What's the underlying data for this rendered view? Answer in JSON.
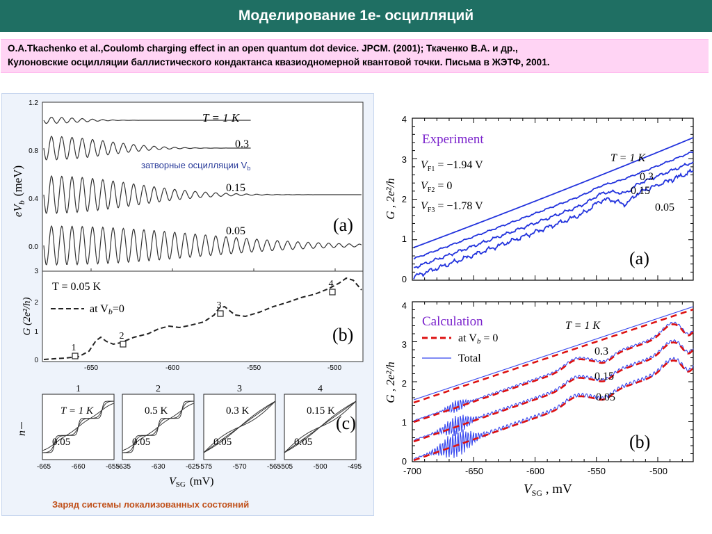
{
  "header": {
    "title": "Моделирование 1е- осцилляций"
  },
  "reference": {
    "line1": "O.A.Tkachenko et al.,Coulomb charging effect in an open quantum dot device. JPCM. (2001); Ткаченко В.А. и др.,",
    "line2": "Кулоновские осцилляции баллистического кондактанса  квазиодномерной квантовой точки. Письма в ЖЭТФ, 2001."
  },
  "left_figure": {
    "annotation_gate": "затворные осцилляции V",
    "annotation_gate_sub": "b",
    "caption": "Заряд системы локализованных состояний",
    "panel_a": {
      "label": "(a)",
      "ylabel": "eV",
      "ylabel_sub": "b",
      "ylabel_unit": "(meV)",
      "yticks": [
        "1.2",
        "0.8",
        "0.4",
        "0.0"
      ],
      "curve_labels": [
        "T = 1 K",
        "0.3",
        "0.15",
        "0.05"
      ]
    },
    "panel_b": {
      "label": "(b)",
      "ylabel": "G  (2e²/h)",
      "yticks": [
        "3",
        "2",
        "1",
        "0"
      ],
      "xticks": [
        "-650",
        "-600",
        "-550",
        "-500"
      ],
      "legend_T": "T = 0.05 K",
      "legend_line": "at V",
      "legend_line_sub": "b",
      "legend_line_tail": "=0",
      "markers": [
        "1",
        "2",
        "3",
        "4"
      ]
    },
    "panel_c": {
      "label": "(c)",
      "ylabel": "n",
      "xlabel": "V",
      "xlabel_sub": "SG",
      "xlabel_unit": "(mV)",
      "subplots": [
        {
          "num": "1",
          "top": "T = 1 K",
          "bottom": "0.05",
          "xticks": [
            "-665",
            "-660",
            "-655"
          ]
        },
        {
          "num": "2",
          "top": "0.5 K",
          "bottom": "0.05",
          "xticks": [
            "-635",
            "-630",
            "-625"
          ]
        },
        {
          "num": "3",
          "top": "0.3 K",
          "bottom": "0.05",
          "xticks": [
            "-575",
            "-570",
            "-565"
          ]
        },
        {
          "num": "4",
          "top": "0.15 K",
          "bottom": "0.05",
          "xticks": [
            "-505",
            "-500",
            "-495"
          ]
        }
      ]
    }
  },
  "right_figure": {
    "ylabel": "G ,  2e²/h",
    "xlabel": "V",
    "xlabel_sub": "SG",
    "xlabel_unit": " , mV",
    "xticks": [
      "-700",
      "-650",
      "-600",
      "-550",
      "-500"
    ],
    "experiment": {
      "label": "(a)",
      "title": "Experiment",
      "params": [
        "V",
        "V",
        "V"
      ],
      "param_subs": [
        "F1",
        "F2",
        "F3"
      ],
      "param_vals": [
        " = −1.94 V",
        " = 0",
        " = −1.78 V"
      ],
      "yticks": [
        "4",
        "3",
        "2",
        "1",
        "0"
      ],
      "curve_labels": [
        "T = 1 K",
        "0.3",
        "0.15",
        "0.05"
      ]
    },
    "calculation": {
      "label": "(b)",
      "title": "Calculation",
      "legend_dashed": "at V",
      "legend_dashed_sub": "b",
      "legend_dashed_tail": " = 0",
      "legend_solid": "Total",
      "yticks": [
        "4",
        "3",
        "2",
        "1",
        "0"
      ],
      "curve_labels": [
        "T = 1 K",
        "0.3",
        "0.15",
        "0.05"
      ]
    }
  },
  "colors": {
    "header_bg": "#1f6f63",
    "reference_bg": "#ffd4f4",
    "annotation_blue": "#2a3c9a",
    "caption_orange": "#c0501a",
    "curve_blue": "#2233dd",
    "curve_red": "#dd1111",
    "title_purple": "#7a22cc"
  }
}
